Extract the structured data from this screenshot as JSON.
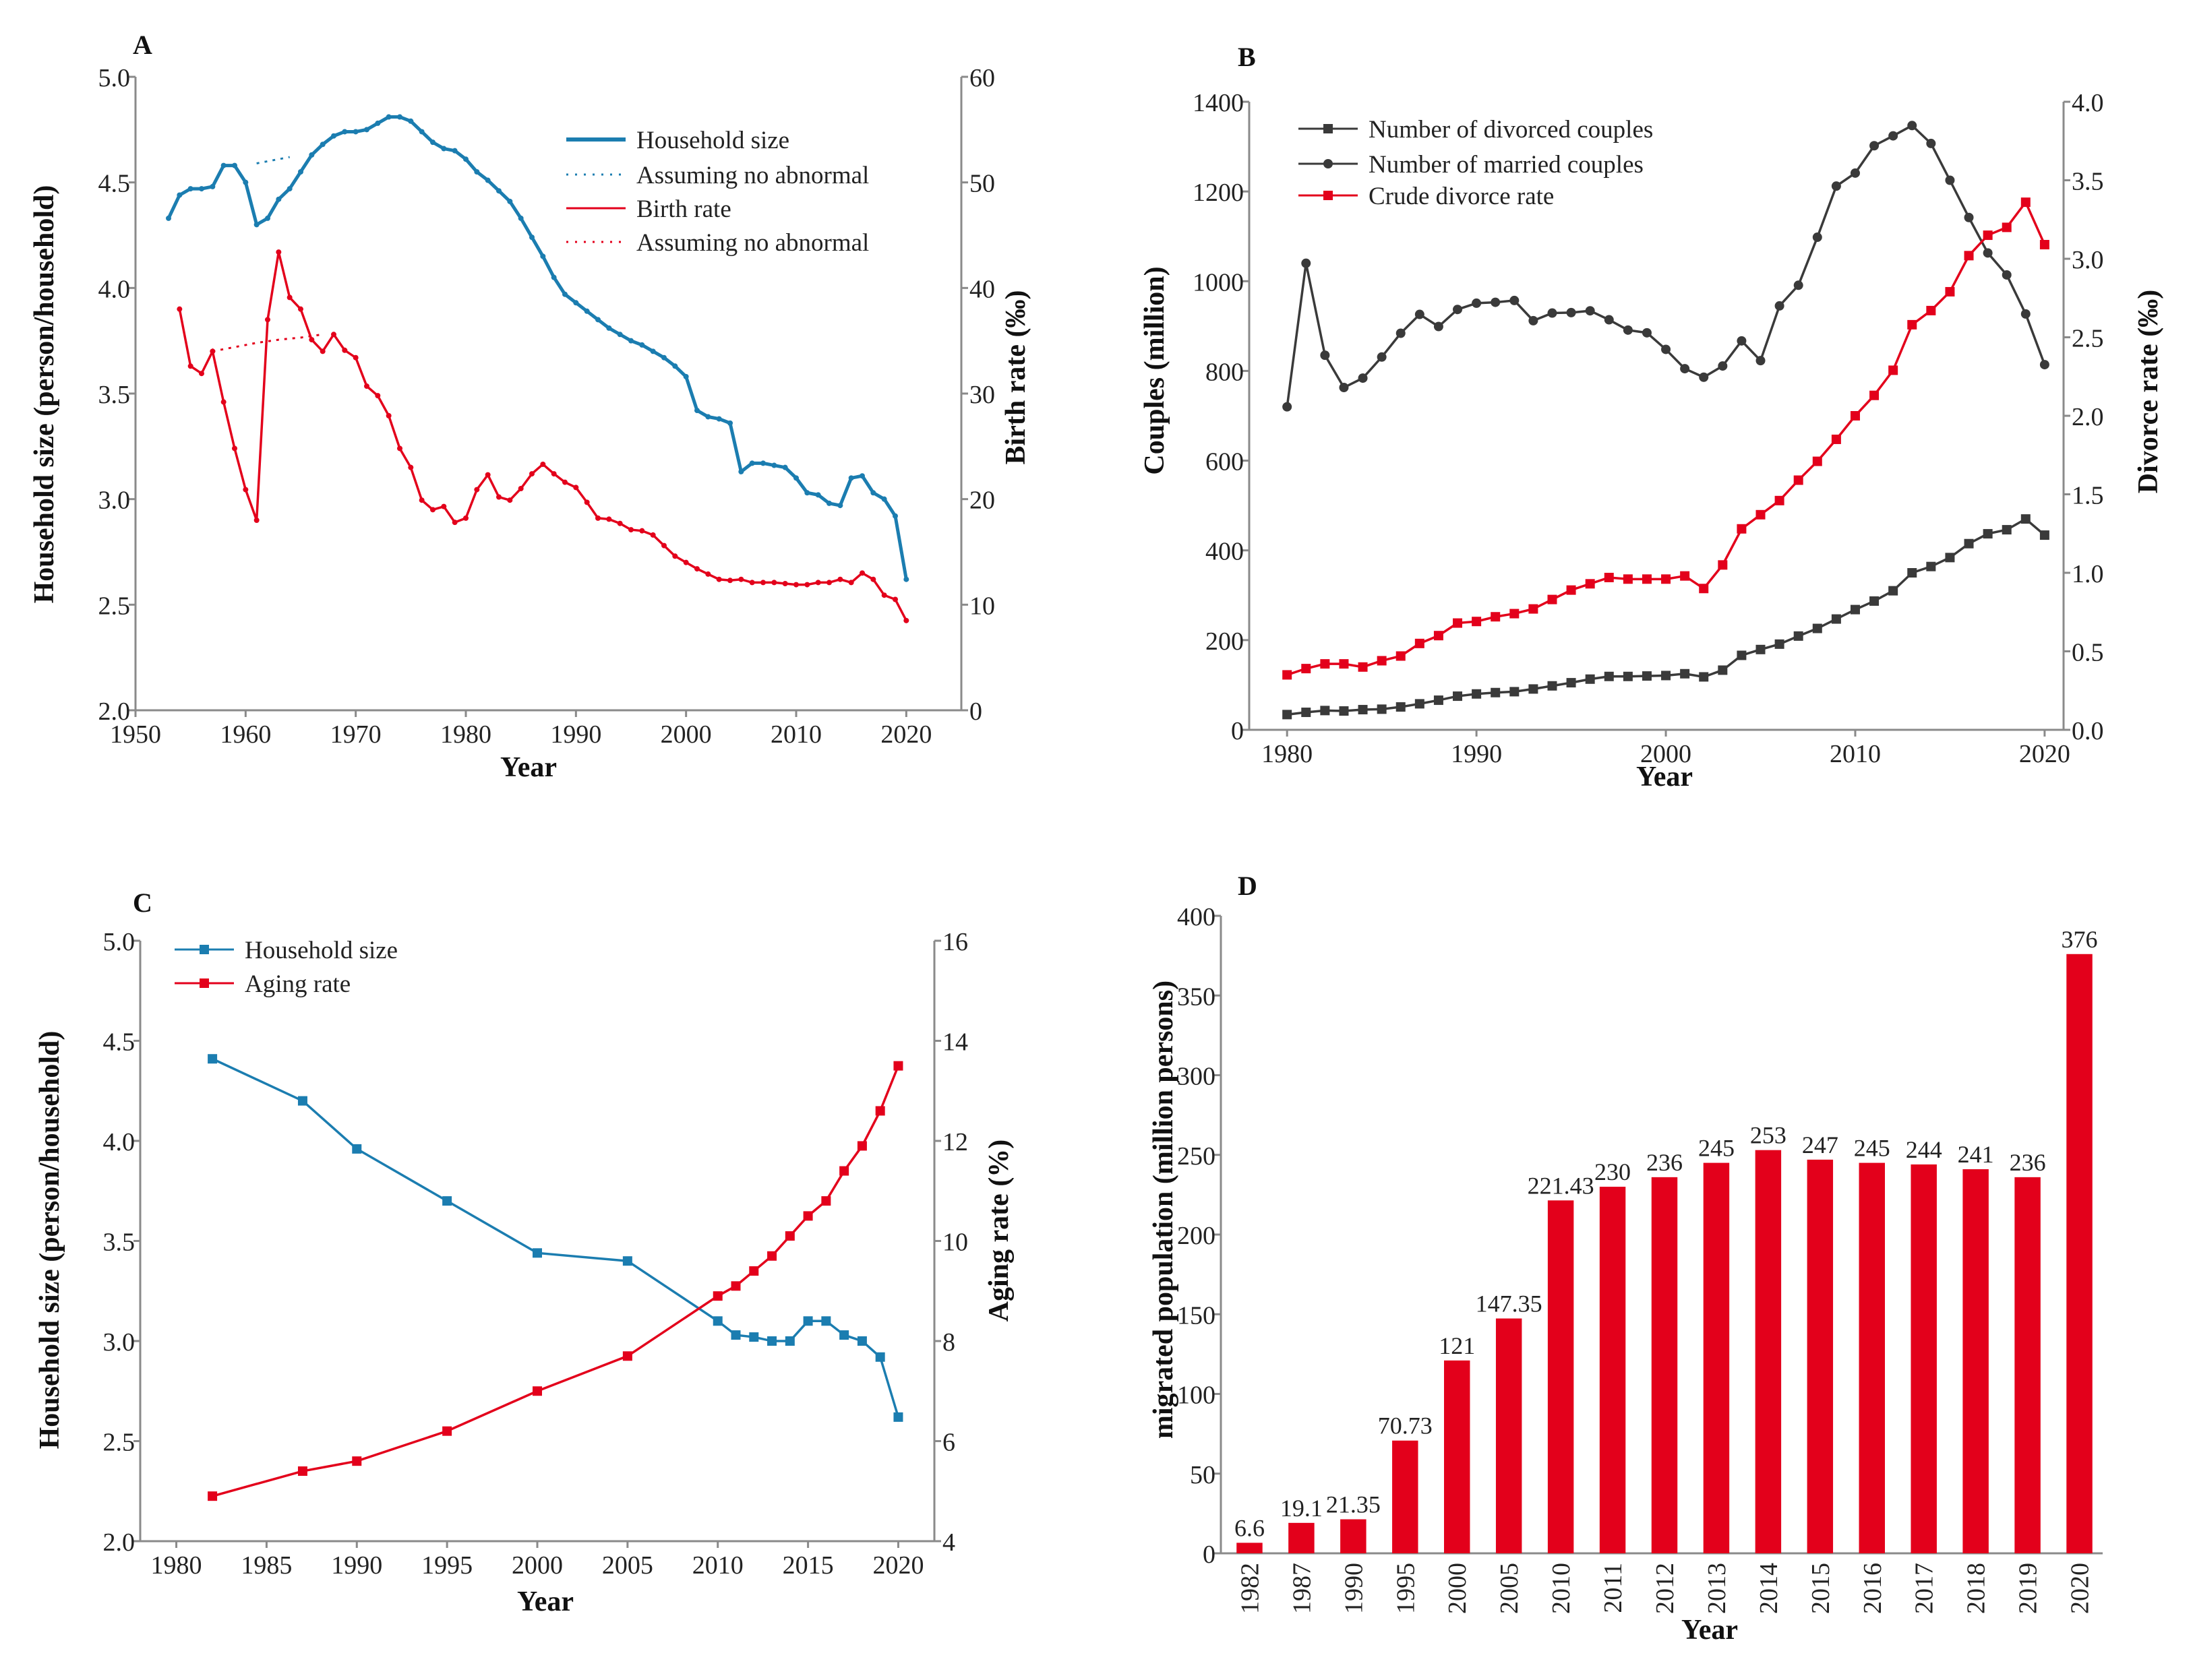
{
  "colors": {
    "blue": "#1b7db0",
    "red": "#e3001b",
    "dark": "#3a3a3a",
    "axis": "#8a8a8a"
  },
  "chart_data": [
    {
      "panel": "A",
      "type": "line",
      "xlabel": "Year",
      "ylabel": "Household size (person/household)",
      "y2label": "Birth rate (‰)",
      "xlim": [
        1950,
        2025
      ],
      "ylim": [
        2.0,
        5.0
      ],
      "y2lim": [
        0,
        60
      ],
      "xticks": [
        "1950",
        "1960",
        "1970",
        "1980",
        "1990",
        "2000",
        "2010",
        "2020"
      ],
      "yticks": [
        "2.0",
        "2.5",
        "3.0",
        "3.5",
        "4.0",
        "4.5",
        "5.0"
      ],
      "y2ticks": [
        "0",
        "10",
        "20",
        "30",
        "40",
        "50",
        "60"
      ],
      "legend_position": "top-right",
      "series": [
        {
          "name": "Household size",
          "axis": "left",
          "color": "#1b7db0",
          "x": [
            1953,
            1954,
            1955,
            1956,
            1957,
            1958,
            1959,
            1960,
            1961,
            1962,
            1963,
            1964,
            1965,
            1966,
            1967,
            1968,
            1969,
            1970,
            1971,
            1972,
            1973,
            1974,
            1975,
            1976,
            1977,
            1978,
            1979,
            1980,
            1981,
            1982,
            1983,
            1984,
            1985,
            1986,
            1987,
            1988,
            1989,
            1990,
            1991,
            1992,
            1993,
            1994,
            1995,
            1996,
            1997,
            1998,
            1999,
            2000,
            2001,
            2002,
            2003,
            2004,
            2005,
            2006,
            2007,
            2008,
            2009,
            2010,
            2011,
            2012,
            2013,
            2014,
            2015,
            2016,
            2017,
            2018,
            2019,
            2020
          ],
          "y": [
            4.33,
            4.44,
            4.47,
            4.47,
            4.48,
            4.58,
            4.58,
            4.5,
            4.3,
            4.33,
            4.42,
            4.47,
            4.55,
            4.63,
            4.68,
            4.72,
            4.74,
            4.74,
            4.75,
            4.78,
            4.81,
            4.81,
            4.79,
            4.74,
            4.69,
            4.66,
            4.65,
            4.61,
            4.55,
            4.51,
            4.46,
            4.41,
            4.33,
            4.24,
            4.15,
            4.05,
            3.97,
            3.93,
            3.89,
            3.85,
            3.81,
            3.78,
            3.75,
            3.73,
            3.7,
            3.67,
            3.63,
            3.58,
            3.42,
            3.39,
            3.38,
            3.36,
            3.13,
            3.17,
            3.17,
            3.16,
            3.15,
            3.1,
            3.03,
            3.02,
            2.98,
            2.97,
            3.1,
            3.11,
            3.03,
            3.0,
            2.92,
            2.62
          ]
        },
        {
          "name": "Assuming no abnormal",
          "axis": "left",
          "color": "#1b7db0",
          "dashed": true,
          "x": [
            1961,
            1962,
            1963,
            1964
          ],
          "y": [
            4.59,
            4.6,
            4.61,
            4.62
          ]
        },
        {
          "name": "Birth rate",
          "axis": "right",
          "color": "#e3001b",
          "x": [
            1954,
            1955,
            1956,
            1957,
            1958,
            1959,
            1960,
            1961,
            1962,
            1963,
            1964,
            1965,
            1966,
            1967,
            1968,
            1969,
            1970,
            1971,
            1972,
            1973,
            1974,
            1975,
            1976,
            1977,
            1978,
            1979,
            1980,
            1981,
            1982,
            1983,
            1984,
            1985,
            1986,
            1987,
            1988,
            1989,
            1990,
            1991,
            1992,
            1993,
            1994,
            1995,
            1996,
            1997,
            1998,
            1999,
            2000,
            2001,
            2002,
            2003,
            2004,
            2005,
            2006,
            2007,
            2008,
            2009,
            2010,
            2011,
            2012,
            2013,
            2014,
            2015,
            2016,
            2017,
            2018,
            2019,
            2020
          ],
          "y": [
            38.0,
            32.6,
            31.9,
            34.0,
            29.2,
            24.8,
            20.9,
            18.0,
            37.0,
            43.4,
            39.1,
            38.0,
            35.1,
            34.0,
            35.6,
            34.1,
            33.4,
            30.7,
            29.8,
            27.9,
            24.8,
            23.0,
            19.9,
            19.0,
            19.3,
            17.8,
            18.2,
            20.9,
            22.3,
            20.2,
            19.9,
            21.0,
            22.4,
            23.3,
            22.4,
            21.6,
            21.1,
            19.7,
            18.2,
            18.1,
            17.7,
            17.1,
            17.0,
            16.6,
            15.6,
            14.6,
            14.0,
            13.4,
            12.9,
            12.4,
            12.3,
            12.4,
            12.1,
            12.1,
            12.1,
            12.0,
            11.9,
            11.9,
            12.1,
            12.1,
            12.4,
            12.1,
            13.0,
            12.4,
            10.9,
            10.5,
            8.5
          ]
        },
        {
          "name": "Assuming no abnormal",
          "axis": "right",
          "color": "#e3001b",
          "dashed": true,
          "x": [
            1957,
            1959,
            1961,
            1963,
            1965,
            1967
          ],
          "y": [
            34.0,
            34.4,
            34.8,
            35.1,
            35.3,
            35.6
          ]
        }
      ]
    },
    {
      "panel": "B",
      "type": "line",
      "xlabel": "Year",
      "ylabel": "Couples (million)",
      "y2label": "Divorce rate (‰)",
      "xlim": [
        1978,
        2021
      ],
      "ylim": [
        0,
        1400
      ],
      "y2lim": [
        0,
        4.0
      ],
      "xticks": [
        "1980",
        "1990",
        "2000",
        "2010",
        "2020"
      ],
      "yticks": [
        "0",
        "200",
        "400",
        "600",
        "800",
        "1000",
        "1200",
        "1400"
      ],
      "y2ticks": [
        "0.0",
        "0.5",
        "1.0",
        "1.5",
        "2.0",
        "2.5",
        "3.0",
        "3.5",
        "4.0"
      ],
      "legend_position": "top-left",
      "x": [
        1980,
        1981,
        1982,
        1983,
        1984,
        1985,
        1986,
        1987,
        1988,
        1989,
        1990,
        1991,
        1992,
        1993,
        1994,
        1995,
        1996,
        1997,
        1998,
        1999,
        2000,
        2001,
        2002,
        2003,
        2004,
        2005,
        2006,
        2007,
        2008,
        2009,
        2010,
        2011,
        2012,
        2013,
        2014,
        2015,
        2016,
        2017,
        2018,
        2019,
        2020
      ],
      "series": [
        {
          "name": "Number of divorced couples",
          "axis": "left",
          "color": "#3a3a3a",
          "marker": "square",
          "y": [
            34,
            39,
            43,
            42,
            45,
            46,
            51,
            58,
            66,
            75,
            80,
            83,
            85,
            91,
            98,
            105,
            113,
            119,
            119,
            120,
            121,
            125,
            118,
            133,
            166,
            179,
            191,
            209,
            226,
            247,
            268,
            287,
            310,
            350,
            364,
            384,
            415,
            437,
            446,
            470,
            434
          ]
        },
        {
          "name": "Number of married couples",
          "axis": "left",
          "color": "#3a3a3a",
          "marker": "circle",
          "y": [
            720,
            1040,
            835,
            763,
            784,
            831,
            884,
            926,
            899,
            937,
            951,
            953,
            957,
            912,
            929,
            930,
            934,
            914,
            891,
            885,
            848,
            805,
            786,
            811,
            867,
            823,
            945,
            991,
            1098,
            1212,
            1241,
            1302,
            1324,
            1347,
            1307,
            1225,
            1142,
            1063,
            1014,
            927,
            814
          ]
        },
        {
          "name": "Crude divorce rate",
          "axis": "right",
          "color": "#e3001b",
          "marker": "square",
          "y": [
            0.35,
            0.39,
            0.42,
            0.42,
            0.4,
            0.44,
            0.47,
            0.55,
            0.6,
            0.68,
            0.69,
            0.72,
            0.74,
            0.77,
            0.83,
            0.89,
            0.93,
            0.97,
            0.96,
            0.96,
            0.96,
            0.98,
            0.9,
            1.05,
            1.28,
            1.37,
            1.46,
            1.59,
            1.71,
            1.85,
            2.0,
            2.13,
            2.29,
            2.58,
            2.67,
            2.79,
            3.02,
            3.15,
            3.2,
            3.36,
            3.09
          ]
        }
      ]
    },
    {
      "panel": "C",
      "type": "line",
      "xlabel": "Year",
      "ylabel": "Household size (person/household)",
      "y2label": "Aging rate (%)",
      "xlim": [
        1978,
        2022
      ],
      "ylim": [
        2.0,
        5.0
      ],
      "y2lim": [
        4,
        16
      ],
      "xticks": [
        "1980",
        "1985",
        "1990",
        "1995",
        "2000",
        "2005",
        "2010",
        "2015",
        "2020"
      ],
      "yticks": [
        "2.0",
        "2.5",
        "3.0",
        "3.5",
        "4.0",
        "4.5",
        "5.0"
      ],
      "y2ticks": [
        "4",
        "6",
        "8",
        "10",
        "12",
        "14",
        "16"
      ],
      "legend_position": "top-left",
      "x": [
        1982,
        1987,
        1990,
        1995,
        2000,
        2005,
        2010,
        2011,
        2012,
        2013,
        2014,
        2015,
        2016,
        2017,
        2018,
        2019,
        2020
      ],
      "series": [
        {
          "name": "Household size",
          "axis": "left",
          "color": "#1b7db0",
          "marker": "square",
          "y": [
            4.41,
            4.2,
            3.96,
            3.7,
            3.44,
            3.4,
            3.1,
            3.03,
            3.02,
            3.0,
            3.0,
            3.1,
            3.1,
            3.03,
            3.0,
            2.92,
            2.62
          ]
        },
        {
          "name": "Aging rate",
          "axis": "right",
          "color": "#e3001b",
          "marker": "square",
          "y": [
            4.9,
            5.4,
            5.6,
            6.2,
            7.0,
            7.7,
            8.9,
            9.1,
            9.4,
            9.7,
            10.1,
            10.5,
            10.8,
            11.4,
            11.9,
            12.6,
            13.5
          ]
        }
      ]
    },
    {
      "panel": "D",
      "type": "bar",
      "xlabel": "Year",
      "ylabel": "migrated population (million persons)",
      "ylim": [
        0,
        400
      ],
      "yticks": [
        "0",
        "50",
        "100",
        "150",
        "200",
        "250",
        "300",
        "350",
        "400"
      ],
      "categories": [
        "1982",
        "1987",
        "1990",
        "1995",
        "2000",
        "2005",
        "2010",
        "2011",
        "2012",
        "2013",
        "2014",
        "2015",
        "2016",
        "2017",
        "2018",
        "2019",
        "2020"
      ],
      "values": [
        6.6,
        19.1,
        21.35,
        70.73,
        121,
        147.35,
        221.43,
        230,
        236,
        245,
        253,
        247,
        245,
        244,
        241,
        236,
        376
      ],
      "labels": [
        "6.6",
        "19.1",
        "21.35",
        "70.73",
        "121",
        "147.35",
        "221.43",
        "230",
        "236",
        "245",
        "253",
        "247",
        "245",
        "244",
        "241",
        "236",
        "376"
      ],
      "color": "#e3001b"
    }
  ]
}
